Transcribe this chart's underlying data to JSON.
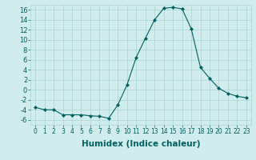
{
  "x": [
    0,
    1,
    2,
    3,
    4,
    5,
    6,
    7,
    8,
    9,
    10,
    11,
    12,
    13,
    14,
    15,
    16,
    17,
    18,
    19,
    20,
    21,
    22,
    23
  ],
  "y": [
    -3.5,
    -4.0,
    -4.0,
    -5.0,
    -5.0,
    -5.0,
    -5.2,
    -5.3,
    -5.7,
    -3.0,
    1.0,
    6.5,
    10.3,
    14.0,
    16.3,
    16.5,
    16.2,
    12.2,
    4.5,
    2.3,
    0.3,
    -0.7,
    -1.3,
    -1.6
  ],
  "line_color": "#006060",
  "marker": "D",
  "marker_size": 2,
  "bg_color": "#d0ecec",
  "grid_color": "#a8d4d4",
  "xlabel": "Humidex (Indice chaleur)",
  "ylim": [
    -7,
    17
  ],
  "xlim": [
    -0.5,
    23.5
  ],
  "yticks": [
    -6,
    -4,
    -2,
    0,
    2,
    4,
    6,
    8,
    10,
    12,
    14,
    16
  ],
  "xticks": [
    0,
    1,
    2,
    3,
    4,
    5,
    6,
    7,
    8,
    9,
    10,
    11,
    12,
    13,
    14,
    15,
    16,
    17,
    18,
    19,
    20,
    21,
    22,
    23
  ],
  "tick_labelsize": 5.5,
  "xlabel_fontsize": 7.5,
  "ytick_labelsize": 6
}
